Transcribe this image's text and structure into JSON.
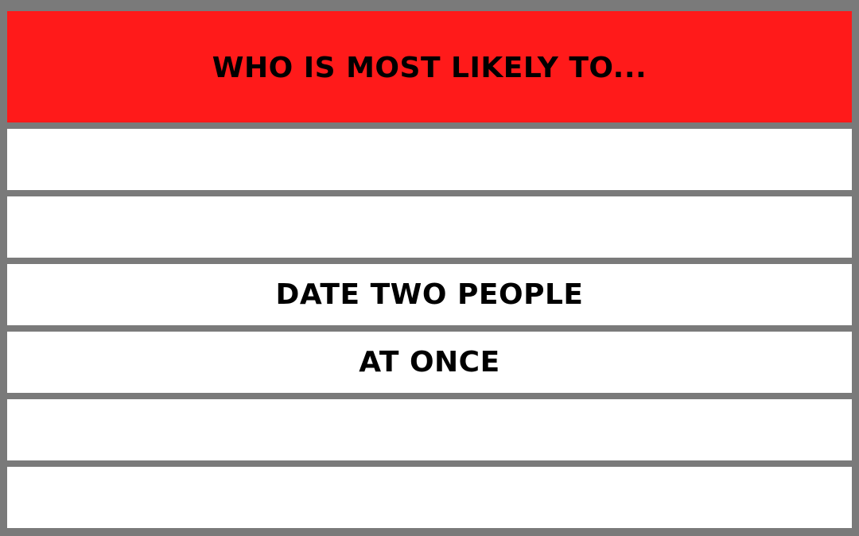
{
  "header": {
    "title": "WHO IS MOST LIKELY TO..."
  },
  "rows": [
    {
      "text": ""
    },
    {
      "text": ""
    },
    {
      "text": "DATE TWO PEOPLE"
    },
    {
      "text": "AT ONCE"
    },
    {
      "text": ""
    },
    {
      "text": ""
    }
  ],
  "colors": {
    "header_background": "#ff1a1a",
    "frame": "#7a7a7a",
    "row_background": "#ffffff",
    "text": "#000000"
  }
}
